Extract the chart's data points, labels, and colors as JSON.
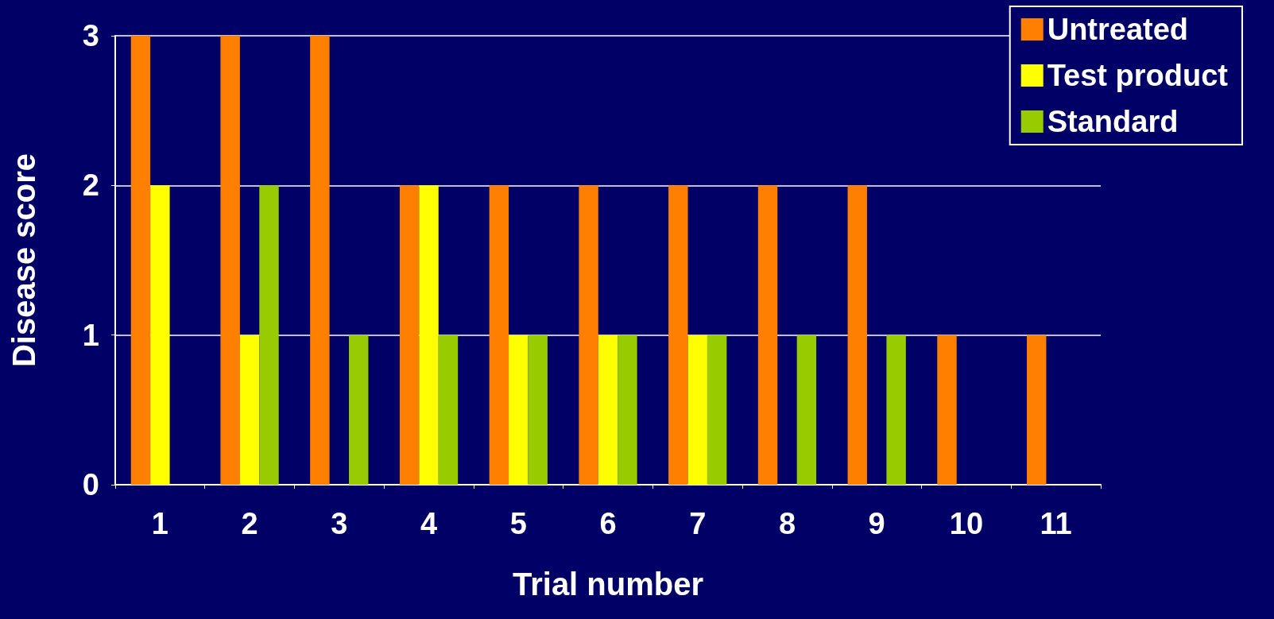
{
  "chart_data": {
    "type": "bar",
    "xlabel": "Trial number",
    "ylabel": "Disease score",
    "categories": [
      "1",
      "2",
      "3",
      "4",
      "5",
      "6",
      "7",
      "8",
      "9",
      "10",
      "11"
    ],
    "series": [
      {
        "name": "Untreated",
        "color": "#ff7f00",
        "values": [
          3,
          3,
          3,
          2,
          2,
          2,
          2,
          2,
          2,
          1,
          1
        ]
      },
      {
        "name": "Test product",
        "color": "#ffff00",
        "values": [
          2,
          1,
          0,
          2,
          1,
          1,
          1,
          0,
          0,
          0,
          0
        ]
      },
      {
        "name": "Standard",
        "color": "#99cc00",
        "values": [
          0,
          2,
          1,
          1,
          1,
          1,
          1,
          1,
          1,
          0,
          0
        ]
      }
    ],
    "ylim": [
      0,
      3
    ],
    "yticks": [
      0,
      1,
      2,
      3
    ],
    "grid": "y",
    "legend": "top right"
  }
}
